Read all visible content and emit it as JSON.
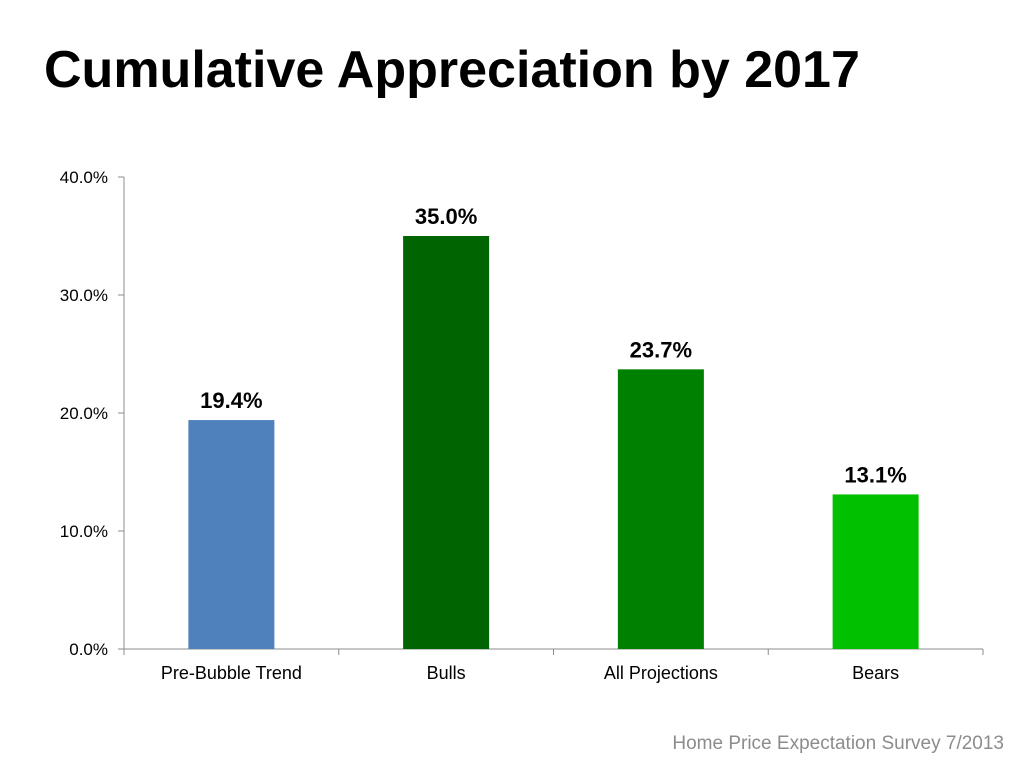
{
  "slide": {
    "title": "Cumulative Appreciation by 2017",
    "source": "Home Price Expectation Survey 7/2013"
  },
  "chart_data": {
    "type": "bar",
    "title": "",
    "xlabel": "",
    "ylabel": "",
    "categories": [
      "Pre-Bubble Trend",
      "Bulls",
      "All Projections",
      "Bears"
    ],
    "values": [
      19.4,
      35.0,
      23.7,
      13.1
    ],
    "data_labels": [
      "19.4%",
      "35.0%",
      "23.7%",
      "13.1%"
    ],
    "bar_colors": [
      "#4f81bd",
      "#006400",
      "#008000",
      "#00c000"
    ],
    "ylim": [
      0,
      40
    ],
    "yticks": [
      0,
      10,
      20,
      30,
      40
    ],
    "ytick_labels": [
      "0.0%",
      "10.0%",
      "20.0%",
      "30.0%",
      "40.0%"
    ],
    "grid": false,
    "legend": "none"
  }
}
